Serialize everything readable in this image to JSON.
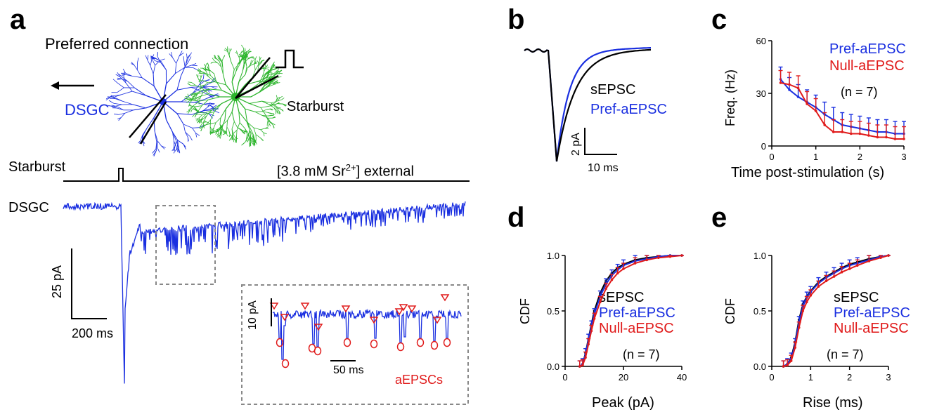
{
  "colors": {
    "dsgc": "#1a2fe0",
    "starburst": "#2db52d",
    "sepsc": "#000000",
    "pref": "#1a2fe0",
    "null": "#e01a1a"
  },
  "panel_a": {
    "letter": "a",
    "title": "Preferred connection",
    "dsgc_label": "DSGC",
    "starburst_label": "Starburst",
    "stim_row_label": "Starburst",
    "condition_prefix": "[3.8 mM Sr",
    "condition_sup": "2+",
    "condition_suffix": "] external",
    "trace_label": "DSGC",
    "scale_y": "25 pA",
    "scale_x": "200 ms",
    "inset": {
      "scale_y": "10 pA",
      "scale_x": "50 ms",
      "events_label": "aEPSCs"
    }
  },
  "panel_b": {
    "letter": "b",
    "legend": [
      "sEPSC",
      "Pref-aEPSC"
    ],
    "scale_y": "2 pA",
    "scale_x": "10 ms"
  },
  "panel_c": {
    "letter": "c",
    "ylabel": "Freq. (Hz)",
    "xlabel": "Time post-stimulation (s)",
    "legend": [
      "Pref-aEPSC",
      "Null-aEPSC"
    ],
    "n_label": "(n = 7)",
    "y_ticks": [
      "0",
      "30",
      "60"
    ],
    "x_ticks": [
      "0",
      "1",
      "2",
      "3"
    ]
  },
  "panel_d": {
    "letter": "d",
    "ylabel": "CDF",
    "xlabel": "Peak (pA)",
    "legend": [
      "sEPSC",
      "Pref-aEPSC",
      "Null-aEPSC"
    ],
    "n_label": "(n = 7)",
    "y_ticks": [
      "0.0",
      "0.5",
      "1.0"
    ],
    "x_ticks": [
      "0",
      "20",
      "40"
    ]
  },
  "panel_e": {
    "letter": "e",
    "ylabel": "CDF",
    "xlabel": "Rise (ms)",
    "legend": [
      "sEPSC",
      "Pref-aEPSC",
      "Null-aEPSC"
    ],
    "n_label": "(n = 7)",
    "y_ticks": [
      "0.0",
      "0.5",
      "1.0"
    ],
    "x_ticks": [
      "0",
      "1",
      "2",
      "3"
    ]
  },
  "chart_data": [
    {
      "type": "line",
      "title": "",
      "xlabel": "Time post-stimulation (s)",
      "ylabel": "Freq. (Hz)",
      "xlim": [
        0,
        3
      ],
      "ylim": [
        0,
        60
      ],
      "x": [
        0.2,
        0.4,
        0.6,
        0.8,
        1.0,
        1.2,
        1.4,
        1.6,
        1.8,
        2.0,
        2.2,
        2.4,
        2.6,
        2.8,
        3.0
      ],
      "series": [
        {
          "name": "Pref-aEPSC",
          "values": [
            38,
            32,
            28,
            25,
            22,
            18,
            15,
            12,
            11,
            10,
            9,
            8,
            8,
            7,
            7
          ]
        },
        {
          "name": "Null-aEPSC",
          "values": [
            36,
            35,
            33,
            24,
            20,
            12,
            8,
            8,
            7,
            7,
            6,
            5,
            5,
            4,
            4
          ]
        }
      ]
    },
    {
      "type": "line",
      "title": "",
      "xlabel": "Peak (pA)",
      "ylabel": "CDF",
      "xlim": [
        0,
        40
      ],
      "ylim": [
        0,
        1
      ],
      "x": [
        5,
        6,
        7,
        8,
        9,
        10,
        12,
        14,
        16,
        18,
        20,
        24,
        28,
        32,
        36,
        40
      ],
      "series": [
        {
          "name": "sEPSC",
          "values": [
            0,
            0.02,
            0.12,
            0.25,
            0.38,
            0.5,
            0.66,
            0.77,
            0.84,
            0.89,
            0.92,
            0.96,
            0.98,
            0.99,
            1.0,
            1.0
          ]
        },
        {
          "name": "Pref-aEPSC",
          "values": [
            0,
            0.02,
            0.11,
            0.24,
            0.36,
            0.47,
            0.63,
            0.74,
            0.82,
            0.87,
            0.91,
            0.95,
            0.97,
            0.99,
            1.0,
            1.0
          ]
        },
        {
          "name": "Null-aEPSC",
          "values": [
            0,
            0.01,
            0.08,
            0.2,
            0.32,
            0.43,
            0.58,
            0.7,
            0.78,
            0.84,
            0.88,
            0.93,
            0.96,
            0.98,
            0.99,
            1.0
          ]
        }
      ]
    },
    {
      "type": "line",
      "title": "",
      "xlabel": "Rise (ms)",
      "ylabel": "CDF",
      "xlim": [
        0,
        3
      ],
      "ylim": [
        0,
        1
      ],
      "x": [
        0.3,
        0.4,
        0.5,
        0.6,
        0.7,
        0.8,
        0.9,
        1.0,
        1.2,
        1.4,
        1.6,
        1.8,
        2.0,
        2.2,
        2.5,
        2.8,
        3.0
      ],
      "series": [
        {
          "name": "sEPSC",
          "values": [
            0,
            0.02,
            0.08,
            0.22,
            0.42,
            0.56,
            0.63,
            0.68,
            0.76,
            0.81,
            0.85,
            0.89,
            0.92,
            0.94,
            0.97,
            0.99,
            1.0
          ]
        },
        {
          "name": "Pref-aEPSC",
          "values": [
            0,
            0.02,
            0.07,
            0.2,
            0.4,
            0.54,
            0.62,
            0.67,
            0.75,
            0.8,
            0.84,
            0.88,
            0.91,
            0.93,
            0.96,
            0.99,
            1.0
          ]
        },
        {
          "name": "Null-aEPSC",
          "values": [
            0,
            0.01,
            0.05,
            0.17,
            0.35,
            0.5,
            0.58,
            0.64,
            0.72,
            0.77,
            0.81,
            0.85,
            0.88,
            0.91,
            0.95,
            0.98,
            1.0
          ]
        }
      ]
    }
  ]
}
